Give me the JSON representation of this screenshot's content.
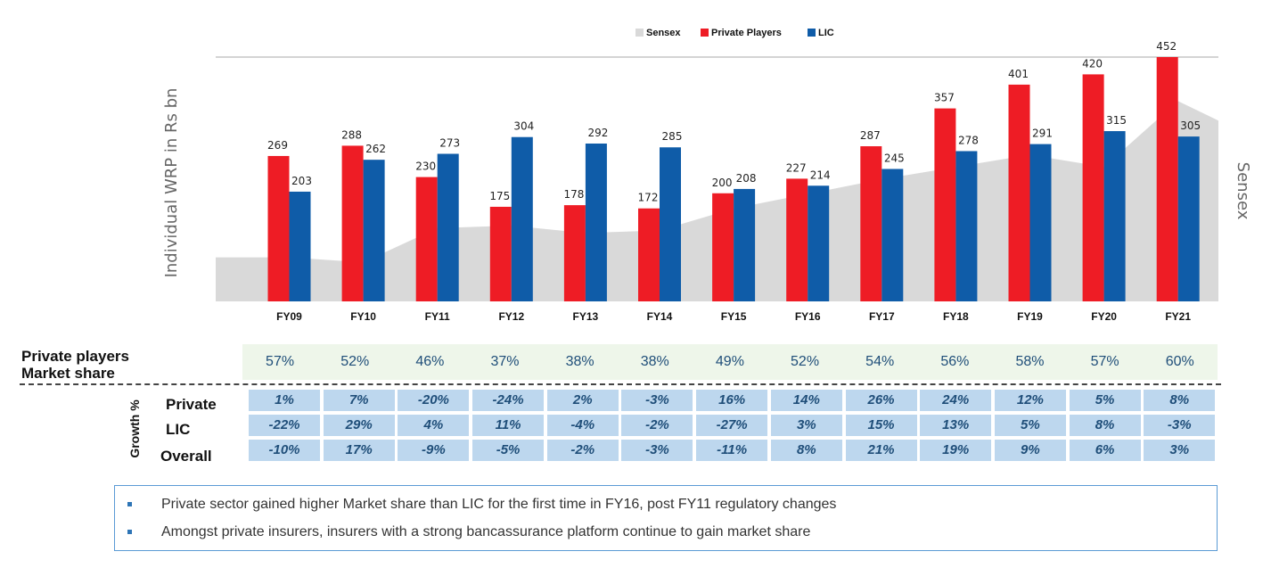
{
  "chart_data": {
    "type": "bar",
    "categories": [
      "FY09",
      "FY10",
      "FY11",
      "FY12",
      "FY13",
      "FY14",
      "FY15",
      "FY16",
      "FY17",
      "FY18",
      "FY19",
      "FY20",
      "FY21"
    ],
    "series": [
      {
        "name": "Private Players",
        "color": "#ee1c25",
        "values": [
          269,
          288,
          230,
          175,
          178,
          172,
          200,
          227,
          287,
          357,
          401,
          420,
          452
        ]
      },
      {
        "name": "LIC",
        "color": "#0f5ca8",
        "values": [
          203,
          262,
          273,
          304,
          292,
          285,
          208,
          214,
          245,
          278,
          291,
          315,
          305
        ]
      }
    ],
    "area_series": {
      "name": "Sensex",
      "color": "#d9d9d9",
      "relative_values": [
        0.18,
        0.16,
        0.3,
        0.31,
        0.28,
        0.29,
        0.38,
        0.44,
        0.5,
        0.55,
        0.6,
        0.55,
        0.82
      ]
    },
    "legend": [
      "Sensex",
      "Private Players",
      "LIC"
    ],
    "ylabel": "Individual WRP in Rs bn",
    "y2label": "Sensex",
    "ylim": [
      0,
      452
    ]
  },
  "market_share": {
    "label_line1": "Private players",
    "label_line2": "Market share",
    "values": [
      "57%",
      "52%",
      "46%",
      "37%",
      "38%",
      "38%",
      "49%",
      "52%",
      "54%",
      "56%",
      "58%",
      "57%",
      "60%"
    ]
  },
  "growth": {
    "title": "Growth %",
    "rows": [
      {
        "label": "Private",
        "values": [
          "1%",
          "7%",
          "-20%",
          "-24%",
          "2%",
          "-3%",
          "16%",
          "14%",
          "26%",
          "24%",
          "12%",
          "5%",
          "8%"
        ]
      },
      {
        "label": "LIC",
        "values": [
          "-22%",
          "29%",
          "4%",
          "11%",
          "-4%",
          "-2%",
          "-27%",
          "3%",
          "15%",
          "13%",
          "5%",
          "8%",
          "-3%"
        ]
      },
      {
        "label": "Overall",
        "values": [
          "-10%",
          "17%",
          "-9%",
          "-5%",
          "-2%",
          "-3%",
          "-11%",
          "8%",
          "21%",
          "19%",
          "9%",
          "6%",
          "3%"
        ]
      }
    ]
  },
  "notes": [
    "Private sector gained higher Market share than LIC for the first time in FY16, post FY11 regulatory changes",
    "Amongst private insurers, insurers with a strong bancassurance platform continue to gain market share"
  ]
}
